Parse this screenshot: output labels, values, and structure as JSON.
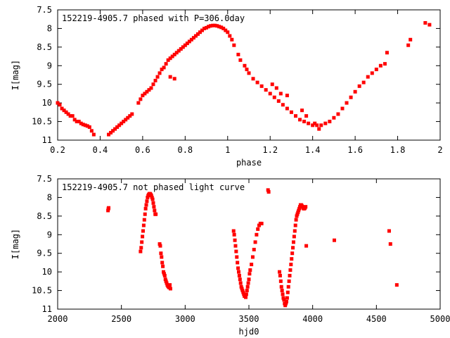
{
  "chart_data": [
    {
      "type": "scatter",
      "title": "152219-4905.7 phased with P=306.0day",
      "xlabel": "phase",
      "ylabel": "I[mag]",
      "xlim": [
        0.2,
        2.0
      ],
      "ylim": [
        7.5,
        11.0
      ],
      "y_inverted": true,
      "x_ticks": [
        "0.2",
        "0.4",
        "0.6",
        "0.8",
        "1",
        "1.2",
        "1.4",
        "1.6",
        "1.8",
        "2"
      ],
      "y_ticks": [
        "7.5",
        "8",
        "8.5",
        "9",
        "9.5",
        "10",
        "10.5",
        "11"
      ],
      "grid": false,
      "marker_color": "#ff0000",
      "series": [
        {
          "x": [
            0.2,
            0.21,
            0.22,
            0.23,
            0.24,
            0.25,
            0.26,
            0.27,
            0.28,
            0.29,
            0.3,
            0.31,
            0.32,
            0.33,
            0.34,
            0.35,
            0.36,
            0.37,
            0.44,
            0.45,
            0.46,
            0.47,
            0.48,
            0.49,
            0.5,
            0.51,
            0.52,
            0.53,
            0.54,
            0.55,
            0.58,
            0.59,
            0.6,
            0.61,
            0.62,
            0.63,
            0.64,
            0.65,
            0.66,
            0.67,
            0.68,
            0.69,
            0.7,
            0.71,
            0.72,
            0.73,
            0.74,
            0.75,
            0.76,
            0.77,
            0.78,
            0.79,
            0.8,
            0.81,
            0.82,
            0.83,
            0.84,
            0.85,
            0.86,
            0.87,
            0.88,
            0.89,
            0.9,
            0.91,
            0.92,
            0.93,
            0.94,
            0.95,
            0.96,
            0.97,
            0.98,
            0.99,
            1.0,
            1.01,
            1.02,
            1.03,
            1.05,
            1.06,
            1.08,
            1.09,
            1.1,
            1.12,
            1.14,
            1.16,
            1.18,
            1.2,
            1.22,
            1.24,
            1.26,
            1.28,
            1.3,
            1.32,
            1.34,
            1.36,
            1.38,
            1.4,
            1.42,
            1.44,
            1.46,
            1.48,
            1.5,
            1.52,
            1.54,
            1.56,
            1.58,
            1.6,
            1.62,
            1.64,
            1.66,
            1.68,
            1.7,
            1.72,
            1.74,
            1.75,
            1.85,
            1.86,
            1.93,
            1.95,
            0.73,
            0.75,
            1.21,
            1.23,
            1.25,
            1.28,
            1.35,
            1.37,
            1.41,
            1.43
          ],
          "y": [
            10.0,
            10.05,
            10.15,
            10.2,
            10.25,
            10.3,
            10.35,
            10.35,
            10.45,
            10.5,
            10.5,
            10.55,
            10.58,
            10.6,
            10.62,
            10.65,
            10.75,
            10.85,
            10.85,
            10.8,
            10.75,
            10.7,
            10.65,
            10.6,
            10.55,
            10.5,
            10.45,
            10.4,
            10.35,
            10.3,
            10.0,
            9.9,
            9.8,
            9.75,
            9.7,
            9.65,
            9.6,
            9.5,
            9.4,
            9.3,
            9.2,
            9.1,
            9.05,
            8.95,
            8.85,
            8.8,
            8.75,
            8.7,
            8.65,
            8.6,
            8.55,
            8.5,
            8.45,
            8.4,
            8.35,
            8.3,
            8.25,
            8.2,
            8.15,
            8.1,
            8.05,
            8.0,
            7.98,
            7.95,
            7.93,
            7.92,
            7.92,
            7.93,
            7.95,
            7.97,
            8.0,
            8.05,
            8.1,
            8.2,
            8.3,
            8.45,
            8.7,
            8.85,
            9.0,
            9.1,
            9.2,
            9.35,
            9.45,
            9.55,
            9.65,
            9.75,
            9.85,
            9.95,
            10.05,
            10.15,
            10.25,
            10.35,
            10.45,
            10.5,
            10.55,
            10.6,
            10.6,
            10.6,
            10.55,
            10.5,
            10.4,
            10.3,
            10.15,
            10.0,
            9.85,
            9.7,
            9.55,
            9.45,
            9.3,
            9.2,
            9.1,
            9.0,
            8.95,
            8.65,
            8.45,
            8.3,
            7.85,
            7.9,
            9.3,
            9.35,
            9.5,
            9.6,
            9.75,
            9.8,
            10.2,
            10.35,
            10.55,
            10.7
          ]
        }
      ]
    },
    {
      "type": "scatter",
      "title": "152219-4905.7 not phased light curve",
      "xlabel": "hjd0",
      "ylabel": "I[mag]",
      "xlim": [
        2000,
        5000
      ],
      "ylim": [
        7.5,
        11.0
      ],
      "y_inverted": true,
      "x_ticks": [
        "2000",
        "2500",
        "3000",
        "3500",
        "4000",
        "4500",
        "5000"
      ],
      "y_ticks": [
        "7.5",
        "8",
        "8.5",
        "9",
        "9.5",
        "10",
        "10.5",
        "11"
      ],
      "grid": false,
      "marker_color": "#ff0000",
      "series": [
        {
          "x": [
            2395,
            2398,
            2400,
            2650,
            2655,
            2660,
            2665,
            2670,
            2675,
            2680,
            2685,
            2690,
            2695,
            2700,
            2705,
            2710,
            2715,
            2720,
            2725,
            2730,
            2735,
            2740,
            2745,
            2750,
            2755,
            2760,
            2765,
            2770,
            2800,
            2805,
            2810,
            2815,
            2820,
            2825,
            2830,
            2835,
            2840,
            2845,
            2850,
            2855,
            2860,
            2865,
            2870,
            2875,
            2880,
            2885,
            3380,
            3385,
            3390,
            3395,
            3400,
            3405,
            3410,
            3415,
            3420,
            3425,
            3430,
            3435,
            3440,
            3445,
            3450,
            3455,
            3460,
            3465,
            3470,
            3475,
            3480,
            3485,
            3490,
            3495,
            3500,
            3505,
            3510,
            3520,
            3530,
            3540,
            3550,
            3560,
            3570,
            3580,
            3590,
            3600,
            3650,
            3655,
            3740,
            3745,
            3750,
            3755,
            3760,
            3765,
            3770,
            3775,
            3780,
            3785,
            3790,
            3795,
            3800,
            3805,
            3810,
            3815,
            3820,
            3825,
            3830,
            3835,
            3840,
            3845,
            3850,
            3855,
            3860,
            3865,
            3870,
            3875,
            3880,
            3885,
            3890,
            3895,
            3900,
            3905,
            3910,
            3915,
            3920,
            3925,
            3930,
            3935,
            3940,
            3945,
            3950,
            4170,
            4600,
            4610,
            4660
          ],
          "y": [
            8.35,
            8.3,
            8.28,
            9.45,
            9.35,
            9.2,
            9.05,
            8.9,
            8.75,
            8.6,
            8.45,
            8.3,
            8.2,
            8.1,
            8.0,
            7.95,
            7.92,
            7.9,
            7.9,
            7.92,
            7.95,
            8.0,
            8.05,
            8.15,
            8.25,
            8.35,
            8.45,
            8.45,
            9.25,
            9.3,
            9.5,
            9.6,
            9.75,
            9.85,
            10.0,
            10.05,
            10.1,
            10.2,
            10.25,
            10.3,
            10.35,
            10.38,
            10.4,
            10.42,
            10.35,
            10.45,
            8.9,
            9.0,
            9.15,
            9.3,
            9.45,
            9.6,
            9.75,
            9.9,
            10.0,
            10.1,
            10.2,
            10.3,
            10.4,
            10.45,
            10.5,
            10.55,
            10.6,
            10.65,
            10.65,
            10.68,
            10.6,
            10.5,
            10.4,
            10.3,
            10.2,
            10.05,
            9.95,
            9.8,
            9.6,
            9.4,
            9.2,
            9.0,
            8.85,
            8.75,
            8.7,
            8.7,
            7.8,
            7.85,
            10.0,
            10.1,
            10.25,
            10.4,
            10.5,
            10.6,
            10.7,
            10.75,
            10.85,
            10.9,
            10.85,
            10.8,
            10.7,
            10.55,
            10.4,
            10.25,
            10.1,
            9.95,
            9.8,
            9.65,
            9.5,
            9.35,
            9.2,
            9.05,
            8.9,
            8.75,
            8.6,
            8.5,
            8.45,
            8.4,
            8.35,
            8.3,
            8.25,
            8.2,
            8.2,
            8.22,
            8.25,
            8.28,
            8.3,
            8.3,
            8.28,
            8.25,
            9.3,
            9.15,
            8.9,
            9.25,
            10.35
          ]
        }
      ]
    }
  ]
}
